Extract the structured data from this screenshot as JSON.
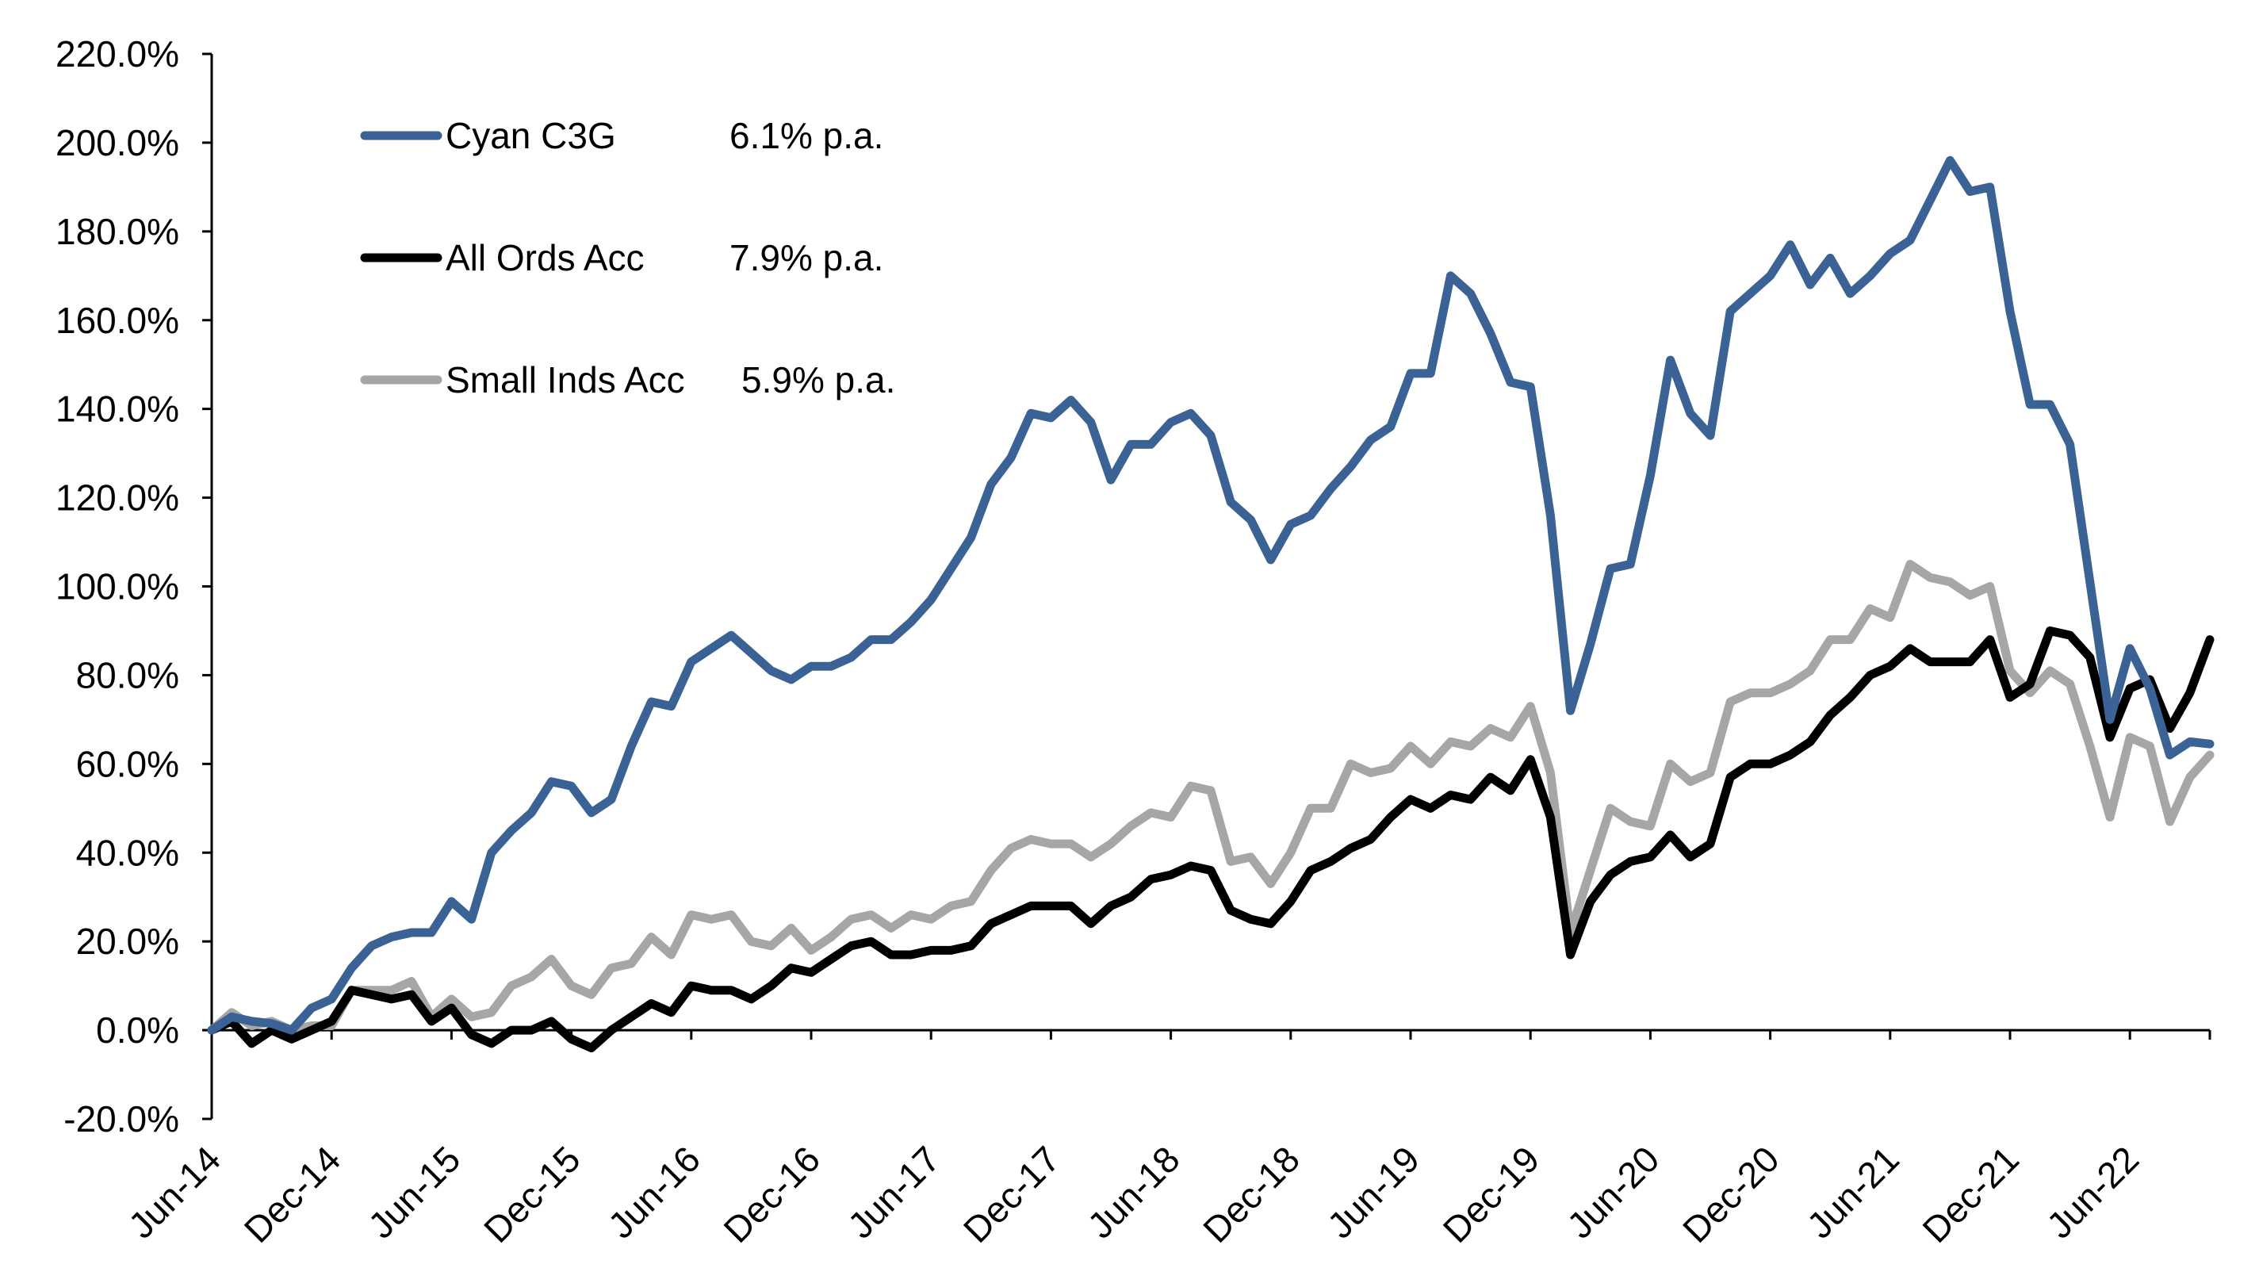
{
  "chart_data": {
    "type": "line",
    "title": "",
    "xlabel": "",
    "ylabel": "",
    "ylim": [
      -20,
      220
    ],
    "y_ticks": [
      "-20.0%",
      "0.0%",
      "20.0%",
      "40.0%",
      "60.0%",
      "80.0%",
      "100.0%",
      "120.0%",
      "140.0%",
      "160.0%",
      "180.0%",
      "200.0%",
      "220.0%"
    ],
    "x_ticks": [
      "Jun-14",
      "Dec-14",
      "Jun-15",
      "Dec-15",
      "Jun-16",
      "Dec-16",
      "Jun-17",
      "Dec-17",
      "Jun-18",
      "Dec-18",
      "Jun-19",
      "Dec-19",
      "Jun-20",
      "Dec-20",
      "Jun-21",
      "Dec-21",
      "Jun-22"
    ],
    "x_start": "Jun-14",
    "x_end": "Dec-22",
    "grid": false,
    "legend_position": "top-left",
    "legend": [
      {
        "label": "Cyan C3G",
        "return": "6.1% p.a."
      },
      {
        "label": "All Ords Acc",
        "return": "7.9% p.a."
      },
      {
        "label": "Small Inds Acc",
        "return": "5.9% p.a."
      }
    ],
    "series": [
      {
        "name": "Cyan C3G",
        "color": "#3b6295",
        "values": [
          0,
          3,
          2,
          1.5,
          0,
          5,
          7,
          14,
          19,
          21,
          22,
          22,
          29,
          25,
          40,
          45,
          49,
          56,
          55,
          49,
          52,
          64,
          74,
          73,
          83,
          86,
          89,
          85,
          81,
          79,
          82,
          82,
          84,
          88,
          88,
          92,
          97,
          104,
          111,
          123,
          129,
          139,
          138,
          142,
          137,
          124,
          132,
          132,
          137,
          139,
          134,
          119,
          115,
          106,
          114,
          116,
          122,
          127,
          133,
          136,
          148,
          148,
          170,
          166,
          157,
          146,
          145,
          116,
          72,
          87,
          104,
          105,
          125,
          151,
          139,
          134,
          162,
          166,
          170,
          177,
          168,
          174,
          166,
          170,
          175,
          178,
          187,
          196,
          189,
          190,
          162,
          141,
          141,
          132,
          101,
          70,
          86,
          77,
          62,
          65,
          64.5
        ]
      },
      {
        "name": "All Ords Acc",
        "color": "#000000",
        "values": [
          0,
          2,
          -3,
          0,
          -2,
          0,
          2,
          9,
          8,
          7,
          8,
          2,
          5,
          -1,
          -3,
          0,
          0,
          2,
          -2,
          -4,
          0,
          3,
          6,
          4,
          10,
          9,
          9,
          7,
          10,
          14,
          13,
          16,
          19,
          20,
          17,
          17,
          18,
          18,
          19,
          24,
          26,
          28,
          28,
          28,
          24,
          28,
          30,
          34,
          35,
          37,
          36,
          27,
          25,
          24,
          29,
          36,
          38,
          41,
          43,
          48,
          52,
          50,
          53,
          52,
          57,
          54,
          61,
          48,
          17,
          29,
          35,
          38,
          39,
          44,
          39,
          42,
          57,
          60,
          60,
          62,
          65,
          71,
          75,
          80,
          82,
          86,
          83,
          83,
          83,
          88,
          75,
          78,
          90,
          89,
          84,
          66,
          77,
          79,
          68,
          76,
          88
        ]
      },
      {
        "name": "Small Inds Acc",
        "color": "#a6a6a6",
        "values": [
          0,
          4,
          1,
          2,
          0,
          1,
          1,
          9,
          9,
          9,
          11,
          3,
          7,
          3,
          4,
          10,
          12,
          16,
          10,
          8,
          14,
          15,
          21,
          17,
          26,
          25,
          26,
          20,
          19,
          23,
          18,
          21,
          25,
          26,
          23,
          26,
          25,
          28,
          29,
          36,
          41,
          43,
          42,
          42,
          39,
          42,
          46,
          49,
          48,
          55,
          54,
          38,
          39,
          33,
          40,
          50,
          50,
          60,
          58,
          59,
          64,
          60,
          65,
          64,
          68,
          66,
          73,
          58,
          22,
          36,
          50,
          47,
          46,
          60,
          56,
          58,
          74,
          76,
          76,
          78,
          81,
          88,
          88,
          95,
          93,
          105,
          102,
          101,
          98,
          100,
          81,
          76,
          81,
          78,
          64,
          48,
          66,
          64,
          47,
          57,
          62
        ]
      }
    ]
  }
}
